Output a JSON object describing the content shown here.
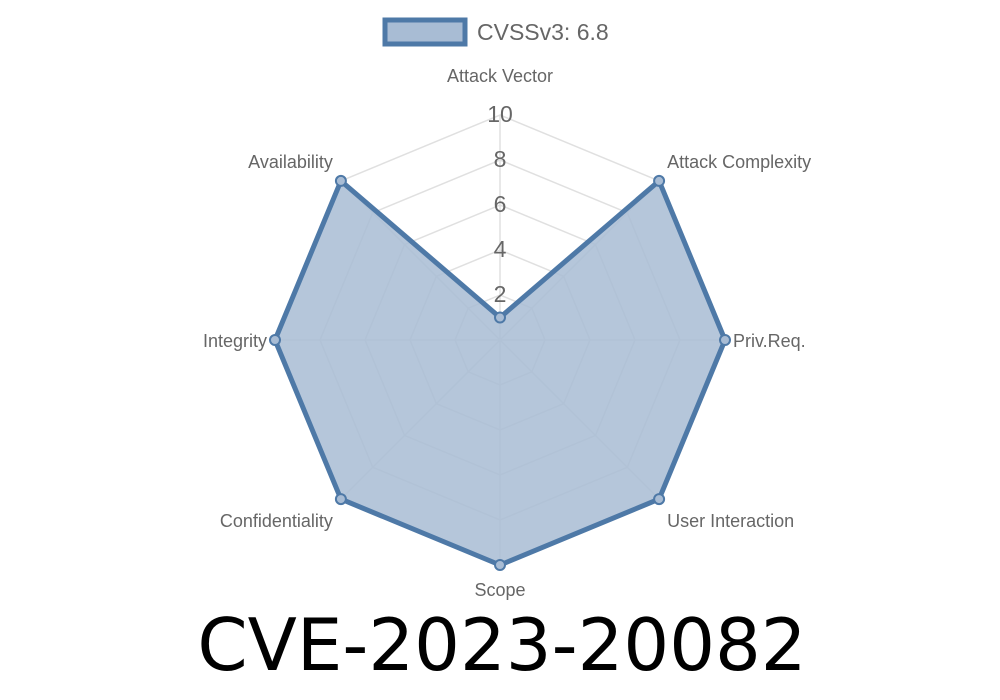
{
  "chart_data": {
    "type": "radar",
    "title": "CVE-2023-20082",
    "axes": [
      "Attack Vector",
      "Attack Complexity",
      "Priv.Req.",
      "User Interaction",
      "Scope",
      "Confidentiality",
      "Integrity",
      "Availability"
    ],
    "series": [
      {
        "name": "CVSSv3: 6.8",
        "values": [
          1,
          10,
          10,
          10,
          10,
          10,
          10,
          10
        ]
      }
    ],
    "r_range": [
      0,
      10
    ],
    "ticks": [
      "2",
      "4",
      "6",
      "8",
      "10"
    ],
    "grid": true,
    "legend_position": "top",
    "colors": {
      "stroke": "#4e79a7",
      "fill": "#a8bcd4",
      "grid": "#e0e0e0"
    }
  }
}
